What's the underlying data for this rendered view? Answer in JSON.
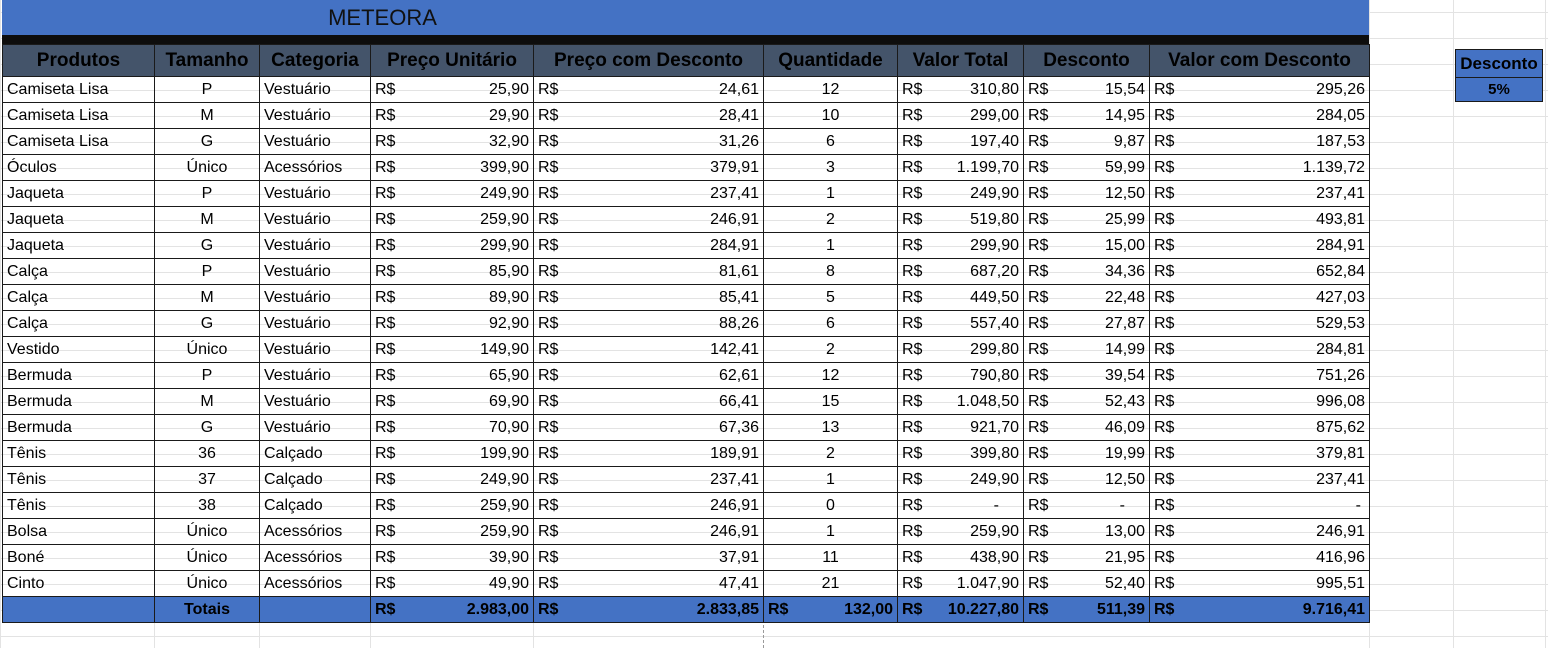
{
  "title": "METEORA",
  "currency": "R$",
  "columns": [
    "Produtos",
    "Tamanho",
    "Categoria",
    "Preço Unitário",
    "Preço com Desconto",
    "Quantidade",
    "Valor Total",
    "Desconto",
    "Valor com Desconto"
  ],
  "rows": [
    {
      "produto": "Camiseta Lisa",
      "tamanho": "P",
      "categoria": "Vestuário",
      "preco": "25,90",
      "preco_desc": "24,61",
      "qtd": "12",
      "total": "310,80",
      "desconto": "15,54",
      "valor_desc": "295,26"
    },
    {
      "produto": "Camiseta Lisa",
      "tamanho": "M",
      "categoria": "Vestuário",
      "preco": "29,90",
      "preco_desc": "28,41",
      "qtd": "10",
      "total": "299,00",
      "desconto": "14,95",
      "valor_desc": "284,05"
    },
    {
      "produto": "Camiseta Lisa",
      "tamanho": "G",
      "categoria": "Vestuário",
      "preco": "32,90",
      "preco_desc": "31,26",
      "qtd": "6",
      "total": "197,40",
      "desconto": "9,87",
      "valor_desc": "187,53"
    },
    {
      "produto": "Óculos",
      "tamanho": "Único",
      "categoria": "Acessórios",
      "preco": "399,90",
      "preco_desc": "379,91",
      "qtd": "3",
      "total": "1.199,70",
      "desconto": "59,99",
      "valor_desc": "1.139,72"
    },
    {
      "produto": "Jaqueta",
      "tamanho": "P",
      "categoria": "Vestuário",
      "preco": "249,90",
      "preco_desc": "237,41",
      "qtd": "1",
      "total": "249,90",
      "desconto": "12,50",
      "valor_desc": "237,41"
    },
    {
      "produto": "Jaqueta",
      "tamanho": "M",
      "categoria": "Vestuário",
      "preco": "259,90",
      "preco_desc": "246,91",
      "qtd": "2",
      "total": "519,80",
      "desconto": "25,99",
      "valor_desc": "493,81"
    },
    {
      "produto": "Jaqueta",
      "tamanho": "G",
      "categoria": "Vestuário",
      "preco": "299,90",
      "preco_desc": "284,91",
      "qtd": "1",
      "total": "299,90",
      "desconto": "15,00",
      "valor_desc": "284,91"
    },
    {
      "produto": "Calça",
      "tamanho": "P",
      "categoria": "Vestuário",
      "preco": "85,90",
      "preco_desc": "81,61",
      "qtd": "8",
      "total": "687,20",
      "desconto": "34,36",
      "valor_desc": "652,84"
    },
    {
      "produto": "Calça",
      "tamanho": "M",
      "categoria": "Vestuário",
      "preco": "89,90",
      "preco_desc": "85,41",
      "qtd": "5",
      "total": "449,50",
      "desconto": "22,48",
      "valor_desc": "427,03"
    },
    {
      "produto": "Calça",
      "tamanho": "G",
      "categoria": "Vestuário",
      "preco": "92,90",
      "preco_desc": "88,26",
      "qtd": "6",
      "total": "557,40",
      "desconto": "27,87",
      "valor_desc": "529,53"
    },
    {
      "produto": "Vestido",
      "tamanho": "Único",
      "categoria": "Vestuário",
      "preco": "149,90",
      "preco_desc": "142,41",
      "qtd": "2",
      "total": "299,80",
      "desconto": "14,99",
      "valor_desc": "284,81"
    },
    {
      "produto": "Bermuda",
      "tamanho": "P",
      "categoria": "Vestuário",
      "preco": "65,90",
      "preco_desc": "62,61",
      "qtd": "12",
      "total": "790,80",
      "desconto": "39,54",
      "valor_desc": "751,26"
    },
    {
      "produto": "Bermuda",
      "tamanho": "M",
      "categoria": "Vestuário",
      "preco": "69,90",
      "preco_desc": "66,41",
      "qtd": "15",
      "total": "1.048,50",
      "desconto": "52,43",
      "valor_desc": "996,08"
    },
    {
      "produto": "Bermuda",
      "tamanho": "G",
      "categoria": "Vestuário",
      "preco": "70,90",
      "preco_desc": "67,36",
      "qtd": "13",
      "total": "921,70",
      "desconto": "46,09",
      "valor_desc": "875,62"
    },
    {
      "produto": "Tênis",
      "tamanho": "36",
      "categoria": "Calçado",
      "preco": "199,90",
      "preco_desc": "189,91",
      "qtd": "2",
      "total": "399,80",
      "desconto": "19,99",
      "valor_desc": "379,81"
    },
    {
      "produto": "Tênis",
      "tamanho": "37",
      "categoria": "Calçado",
      "preco": "249,90",
      "preco_desc": "237,41",
      "qtd": "1",
      "total": "249,90",
      "desconto": "12,50",
      "valor_desc": "237,41"
    },
    {
      "produto": "Tênis",
      "tamanho": "38",
      "categoria": "Calçado",
      "preco": "259,90",
      "preco_desc": "246,91",
      "qtd": "0",
      "total": "-",
      "desconto": "-",
      "valor_desc": "-"
    },
    {
      "produto": "Bolsa",
      "tamanho": "Único",
      "categoria": "Acessórios",
      "preco": "259,90",
      "preco_desc": "246,91",
      "qtd": "1",
      "total": "259,90",
      "desconto": "13,00",
      "valor_desc": "246,91"
    },
    {
      "produto": "Boné",
      "tamanho": "Único",
      "categoria": "Acessórios",
      "preco": "39,90",
      "preco_desc": "37,91",
      "qtd": "11",
      "total": "438,90",
      "desconto": "21,95",
      "valor_desc": "416,96"
    },
    {
      "produto": "Cinto",
      "tamanho": "Único",
      "categoria": "Acessórios",
      "preco": "49,90",
      "preco_desc": "47,41",
      "qtd": "21",
      "total": "1.047,90",
      "desconto": "52,40",
      "valor_desc": "995,51"
    }
  ],
  "totals": {
    "label": "Totais",
    "preco": "2.983,00",
    "preco_desc": "2.833,85",
    "qtd": "132,00",
    "total": "10.227,80",
    "desconto": "511,39",
    "valor_desc": "9.716,41"
  },
  "discount_box": {
    "label": "Desconto",
    "value": "5%"
  },
  "colors": {
    "header_bg": "#44546a",
    "accent": "#4472c4",
    "band": "#0d0d0d"
  }
}
